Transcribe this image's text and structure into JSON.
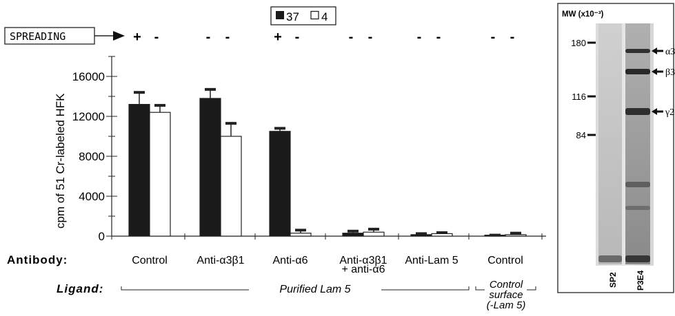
{
  "chart_data": {
    "type": "bar",
    "ylabel": "cpm of 51 Cr-labeled HFK",
    "ylim": [
      0,
      18000
    ],
    "yticks": [
      "0",
      "4000",
      "8000",
      "12000",
      "16000"
    ],
    "ytick_values": [
      0,
      4000,
      8000,
      12000,
      16000
    ],
    "legend": [
      {
        "symbol": "filled",
        "label": "37"
      },
      {
        "symbol": "open",
        "label": "4"
      }
    ],
    "spreading_label": "SPREADING",
    "antibody_label": "Antibody:",
    "ligand_label": "Ligand:",
    "categories": [
      "Control",
      "Anti-α3β1",
      "Anti-α6",
      "Anti-α3β1",
      "Anti-Lam 5",
      "Control"
    ],
    "category_line2": [
      "",
      "",
      "",
      "+ anti-α6",
      "",
      ""
    ],
    "spreading_marks": [
      [
        "+",
        "-"
      ],
      [
        "-",
        "-"
      ],
      [
        "+",
        "-"
      ],
      [
        "-",
        "-"
      ],
      [
        "-",
        "-"
      ],
      [
        "-",
        "-"
      ]
    ],
    "ligand_groups": [
      {
        "lines": [
          "Purified Lam 5"
        ],
        "from": 0,
        "to": 4
      },
      {
        "lines": [
          "Control",
          "surface",
          "(-Lam 5)"
        ],
        "from": 5,
        "to": 5
      }
    ],
    "series": [
      {
        "name": "37",
        "values": [
          13200,
          13800,
          10500,
          300,
          150,
          50
        ],
        "errors": [
          1200,
          900,
          300,
          200,
          100,
          50
        ]
      },
      {
        "name": "4",
        "values": [
          12400,
          10000,
          300,
          400,
          250,
          150
        ],
        "errors": [
          700,
          1300,
          300,
          300,
          100,
          150
        ]
      }
    ],
    "colors": {
      "filled": "#1a1a1a",
      "open": "#ffffff",
      "axis": "#222222"
    }
  },
  "gel": {
    "mw_label": "MW (x10⁻³)",
    "markers": [
      "180",
      "116",
      "84"
    ],
    "marker_values": [
      180,
      116,
      84
    ],
    "bands": [
      "α3",
      "β3",
      "γ2"
    ],
    "lanes": [
      "SP2",
      "P3E4"
    ]
  }
}
